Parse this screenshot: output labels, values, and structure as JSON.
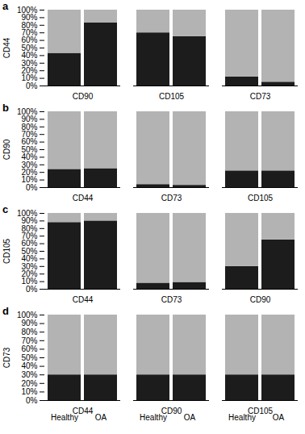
{
  "chart_data": [
    {
      "type": "bar",
      "stacked": true,
      "title": "a",
      "ylabel": "CD44",
      "categories": [
        null,
        null,
        null,
        null,
        null,
        null
      ],
      "annotations": [
        "CD90",
        "CD105",
        "CD73"
      ],
      "series": [
        {
          "color": "#1c1c1c",
          "values": [
            0.43,
            0.83,
            0.7,
            0.65,
            0.12,
            0.05
          ]
        },
        {
          "color": "#b3b3b3",
          "values": [
            0.57,
            0.17,
            0.3,
            0.35,
            0.88,
            0.95
          ]
        }
      ],
      "ylim": [
        0,
        1.0
      ],
      "yticks": [
        {
          "value": 0.0,
          "label": "0%"
        },
        {
          "value": 0.1,
          "label": "10%"
        },
        {
          "value": 0.2,
          "label": "20%"
        },
        {
          "value": 0.3,
          "label": "30%"
        },
        {
          "value": 0.4,
          "label": "40%"
        },
        {
          "value": 0.5,
          "label": "50%"
        },
        {
          "value": 0.6,
          "label": "60%"
        },
        {
          "value": 0.7,
          "label": "70%"
        },
        {
          "value": 0.8,
          "label": "80%"
        },
        {
          "value": 0.9,
          "label": "90%"
        },
        {
          "value": 1.0,
          "label": "100%"
        }
      ]
    },
    {
      "type": "bar",
      "stacked": true,
      "title": "b",
      "ylabel": "CD90",
      "categories": [
        null,
        null,
        null,
        null,
        null,
        null
      ],
      "annotations": [
        "CD44",
        "CD73",
        "CD105"
      ],
      "series": [
        {
          "color": "#1c1c1c",
          "values": [
            0.24,
            0.25,
            0.04,
            0.03,
            0.22,
            0.22
          ]
        },
        {
          "color": "#b3b3b3",
          "values": [
            0.76,
            0.75,
            0.96,
            0.97,
            0.78,
            0.78
          ]
        }
      ],
      "ylim": [
        0,
        1.0
      ],
      "yticks": [
        {
          "value": 0.0,
          "label": "0%"
        },
        {
          "value": 0.1,
          "label": "10%"
        },
        {
          "value": 0.2,
          "label": "20%"
        },
        {
          "value": 0.3,
          "label": "30%"
        },
        {
          "value": 0.4,
          "label": "40%"
        },
        {
          "value": 0.5,
          "label": "50%"
        },
        {
          "value": 0.6,
          "label": "60%"
        },
        {
          "value": 0.7,
          "label": "70%"
        },
        {
          "value": 0.8,
          "label": "80%"
        },
        {
          "value": 0.9,
          "label": "90%"
        },
        {
          "value": 1.0,
          "label": "100%"
        }
      ]
    },
    {
      "type": "bar",
      "stacked": true,
      "title": "c",
      "ylabel": "CD105",
      "categories": [
        null,
        null,
        null,
        null,
        null,
        null
      ],
      "annotations": [
        "CD44",
        "CD73",
        "CD90"
      ],
      "series": [
        {
          "color": "#1c1c1c",
          "values": [
            0.88,
            0.9,
            0.08,
            0.09,
            0.3,
            0.65
          ]
        },
        {
          "color": "#b3b3b3",
          "values": [
            0.12,
            0.1,
            0.92,
            0.91,
            0.7,
            0.35
          ]
        }
      ],
      "ylim": [
        0,
        1.0
      ],
      "yticks": [
        {
          "value": 0.0,
          "label": "0%"
        },
        {
          "value": 0.1,
          "label": "10%"
        },
        {
          "value": 0.2,
          "label": "20%"
        },
        {
          "value": 0.3,
          "label": "30%"
        },
        {
          "value": 0.4,
          "label": "40%"
        },
        {
          "value": 0.5,
          "label": "50%"
        },
        {
          "value": 0.6,
          "label": "60%"
        },
        {
          "value": 0.7,
          "label": "70%"
        },
        {
          "value": 0.8,
          "label": "80%"
        },
        {
          "value": 0.9,
          "label": "90%"
        },
        {
          "value": 1.0,
          "label": "100%"
        }
      ]
    },
    {
      "type": "bar",
      "stacked": true,
      "title": "d",
      "ylabel": "CD73",
      "categories": [
        "Healthy",
        "OA",
        "Healthy",
        "OA",
        "Healthy",
        "OA"
      ],
      "annotations": [
        "CD44",
        "CD90",
        "CD105"
      ],
      "series": [
        {
          "color": "#1c1c1c",
          "values": [
            0.3,
            0.3,
            0.3,
            0.3,
            0.3,
            0.3
          ]
        },
        {
          "color": "#b3b3b3",
          "values": [
            0.7,
            0.7,
            0.7,
            0.7,
            0.7,
            0.7
          ]
        }
      ],
      "ylim": [
        0,
        1.0
      ],
      "yticks": [
        {
          "value": 0.0,
          "label": "0%"
        },
        {
          "value": 0.1,
          "label": "10%"
        },
        {
          "value": 0.2,
          "label": "20%"
        },
        {
          "value": 0.3,
          "label": "30%"
        },
        {
          "value": 0.4,
          "label": "40%"
        },
        {
          "value": 0.5,
          "label": "50%"
        },
        {
          "value": 0.6,
          "label": "60%"
        },
        {
          "value": 0.7,
          "label": "70%"
        },
        {
          "value": 0.8,
          "label": "80%"
        },
        {
          "value": 0.9,
          "label": "90%"
        },
        {
          "value": 1.0,
          "label": "100%"
        }
      ]
    }
  ]
}
